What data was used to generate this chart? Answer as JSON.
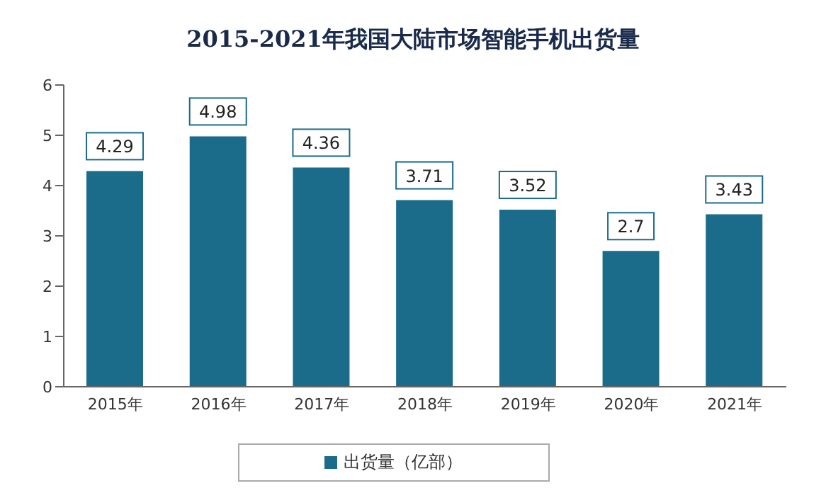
{
  "chart_data": {
    "type": "bar",
    "title": "2015-2021年我国大陆市场智能手机出货量",
    "categories": [
      "2015年",
      "2016年",
      "2017年",
      "2018年",
      "2019年",
      "2020年",
      "2021年"
    ],
    "series": [
      {
        "name": "出货量（亿部）",
        "color": "#1b6b8a",
        "values": [
          4.29,
          4.98,
          4.36,
          3.71,
          3.52,
          2.7,
          3.43
        ]
      }
    ],
    "ylim": [
      0,
      6
    ],
    "yticks": [
      0,
      1,
      2,
      3,
      4,
      5,
      6
    ],
    "grid": false,
    "legend": "bottom",
    "data_labels": true
  }
}
